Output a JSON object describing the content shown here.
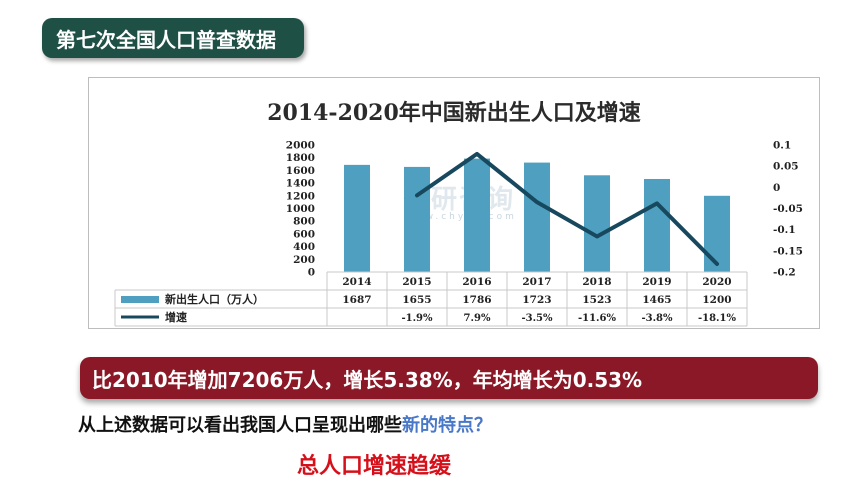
{
  "slide": {
    "title": "第七次全国人口普查数据",
    "banner": "比2010年增加7206万人，增长5.38%，年均增长为0.53%",
    "question_main": "从上述数据可以看出我国人口呈现出哪些",
    "question_highlight": "新的特点？",
    "answer": "总人口增速趋缓"
  },
  "colors": {
    "title_bg": "#1f5046",
    "banner_bg": "#8a1826",
    "bar": "#4e9fc0",
    "line": "#17485e",
    "answer_text": "#d6101b",
    "highlight_text": "#4a78c8"
  },
  "chart_data": {
    "type": "bar",
    "title": "2014-2020年中国新出生人口及增速",
    "watermark": "智研咨询 www.chyxx.com",
    "categories": [
      "2014",
      "2015",
      "2016",
      "2017",
      "2018",
      "2019",
      "2020"
    ],
    "y_left": {
      "ylim": [
        0,
        2000
      ],
      "ticks": [
        "0",
        "200",
        "400",
        "600",
        "800",
        "1000",
        "1200",
        "1400",
        "1600",
        "1800",
        "2000"
      ]
    },
    "y_right": {
      "ylim": [
        -0.2,
        0.1
      ],
      "ticks": [
        "-0.2",
        "-0.15",
        "-0.1",
        "-0.05",
        "0",
        "0.05",
        "0.1"
      ]
    },
    "series": [
      {
        "name": "新出生人口（万人）",
        "type": "bar",
        "axis": "left",
        "values": [
          1687,
          1655,
          1786,
          1723,
          1523,
          1465,
          1200
        ],
        "labels": [
          "1687",
          "1655",
          "1786",
          "1723",
          "1523",
          "1465",
          "1200"
        ]
      },
      {
        "name": "增速",
        "type": "line",
        "axis": "right",
        "values": [
          null,
          -0.019,
          0.079,
          -0.035,
          -0.116,
          -0.038,
          -0.181
        ],
        "labels": [
          "",
          "-1.9%",
          "7.9%",
          "-3.5%",
          "-11.6%",
          "-3.8%",
          "-18.1%"
        ]
      }
    ],
    "grid": false,
    "legend": "data-table"
  }
}
